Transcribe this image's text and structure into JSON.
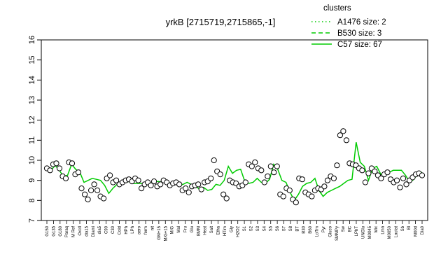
{
  "chart_data": {
    "type": "line",
    "title": "yrkB [2715719,2715865,-1]",
    "xlabel": "",
    "ylabel": "",
    "ylim": [
      7,
      16
    ],
    "yticks": [
      7,
      8,
      9,
      10,
      11,
      12,
      13,
      14,
      15,
      16
    ],
    "grid": false,
    "legend": {
      "title": "clusters",
      "placement": "top-right",
      "color": "#00cc00",
      "entries": [
        {
          "label": "A1476 size: 2",
          "style": "dotted"
        },
        {
          "label": "B530 size: 3",
          "style": "dashed"
        },
        {
          "label": "C57 size: 67",
          "style": "solid"
        }
      ]
    },
    "x_tick_labels": [
      "G150",
      "G135",
      "G180",
      "Paraq",
      "M Ref",
      "Oxctl",
      "dia15",
      "Diami",
      "dia5",
      "C90",
      "C30",
      "Cold",
      "HPh",
      "LPh",
      "aero",
      "ferm",
      "nit",
      "GM+15",
      "M/G+15",
      "M/G",
      "Mal",
      "Fru",
      "Glu",
      "BMM",
      "Heat",
      "Salt",
      "Etha",
      "HTim",
      "Gly",
      "H2O2",
      "S1",
      "S2",
      "S3",
      "S4",
      "S5",
      "S6",
      "S7",
      "S8",
      "BT",
      "B30",
      "B60",
      "LoTm",
      "Pyr",
      "Gluco",
      "SMMPy",
      "Sw",
      "BC",
      "LPhT",
      "UNGlu",
      "M0045",
      "Mix",
      "Lmn",
      "M0050",
      "Lactat",
      "Sb",
      "Bl",
      "M00d",
      "Dia0"
    ],
    "series": [
      {
        "name": "C57 size: 67",
        "line_y": [
          9.55,
          9.5,
          9.75,
          9.5,
          9.2,
          9.25,
          9.8,
          9.55,
          9.4,
          8.9,
          9.0,
          9.1,
          9.05,
          9.0,
          8.75,
          8.35,
          8.6,
          8.8,
          8.85,
          8.9,
          8.95,
          8.85,
          8.85,
          8.85,
          8.9,
          8.85,
          8.9,
          8.95,
          8.9,
          8.95,
          8.85,
          8.85,
          8.75,
          8.8,
          8.9,
          8.8,
          8.75,
          8.55,
          8.65,
          8.5,
          8.55,
          8.8,
          8.75,
          9.0,
          9.7,
          9.35,
          9.5,
          9.55,
          8.95,
          8.85,
          8.9,
          9.1,
          8.9,
          8.85,
          9.05,
          9.8,
          9.55,
          9.0,
          8.9,
          8.4,
          8.0,
          8.3,
          8.7,
          8.85,
          8.9,
          9.1,
          8.5,
          8.2,
          8.4,
          8.5,
          8.6,
          8.7,
          8.85,
          9.0,
          9.05,
          10.9,
          9.9,
          9.7,
          9.0,
          9.6,
          9.7,
          9.3,
          9.35,
          9.4,
          9.5,
          9.5,
          9.5,
          9.25,
          8.9,
          9.05,
          9.35,
          9.4
        ],
        "points_y": [
          9.6,
          9.5,
          9.8,
          9.85,
          9.6,
          9.2,
          9.1,
          9.9,
          9.85,
          9.3,
          9.4,
          8.6,
          8.3,
          8.05,
          8.5,
          8.8,
          8.5,
          8.2,
          8.1,
          9.1,
          9.25,
          8.9,
          9.0,
          8.8,
          8.9,
          9.0,
          9.05,
          8.95,
          9.1,
          9.0,
          8.6,
          8.8,
          8.9,
          8.75,
          8.95,
          8.7,
          8.8,
          9.0,
          8.9,
          8.75,
          8.85,
          8.9,
          8.8,
          8.5,
          8.6,
          8.4,
          8.7,
          8.75,
          8.8,
          8.55,
          8.9,
          8.95,
          9.1,
          10.0,
          9.45,
          9.3,
          8.3,
          8.1,
          9.0,
          8.9,
          8.85,
          8.7,
          8.75,
          8.9,
          9.8,
          9.7,
          9.9,
          9.6,
          9.5,
          8.9,
          9.2,
          9.7,
          9.4,
          9.7,
          8.3,
          8.2,
          8.6,
          8.5,
          8.05,
          7.9,
          9.1,
          9.05,
          8.4,
          8.3,
          8.2,
          8.5,
          8.6,
          8.55,
          8.7,
          9.0,
          9.2,
          9.1,
          9.75,
          11.25,
          11.45,
          11.0,
          9.85,
          9.8,
          9.75,
          9.6,
          9.5,
          8.9,
          9.35,
          9.6,
          9.45,
          9.25,
          9.1,
          9.3,
          9.4,
          9.05,
          8.9,
          9.0,
          8.65,
          9.1,
          8.8,
          9.0,
          9.15,
          9.3,
          9.35,
          9.25
        ]
      }
    ]
  }
}
